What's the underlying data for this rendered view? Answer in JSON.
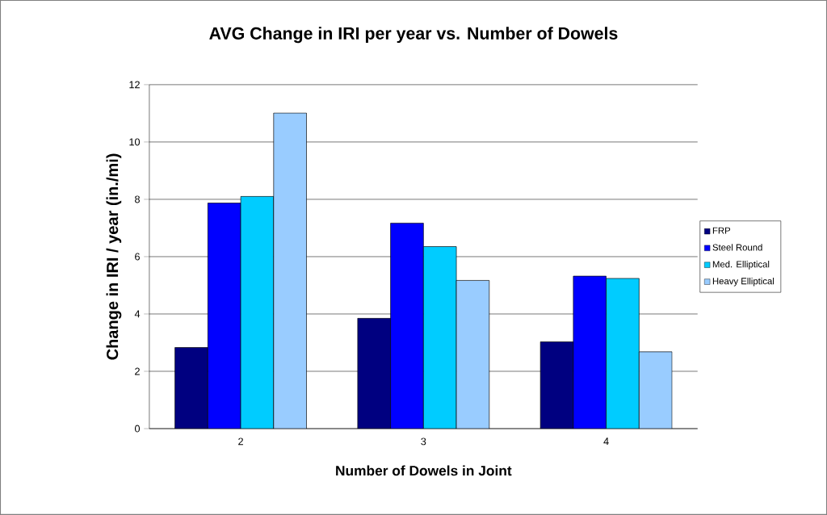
{
  "chart_data": {
    "type": "bar",
    "title": "AVG Change in IRI per year vs. Number of Dowels",
    "xlabel": "Number of Dowels in Joint",
    "ylabel": "Change in IRI / year (in./mi)",
    "categories": [
      "2",
      "3",
      "4"
    ],
    "series": [
      {
        "name": "FRP",
        "color": "#000080",
        "values": [
          2.83,
          3.85,
          3.03
        ]
      },
      {
        "name": "Steel Round",
        "color": "#0000ff",
        "values": [
          7.87,
          7.17,
          5.32
        ]
      },
      {
        "name": "Med. Elliptical",
        "color": "#00ccff",
        "values": [
          8.1,
          6.35,
          5.24
        ]
      },
      {
        "name": "Heavy Elliptical",
        "color": "#99ccff",
        "values": [
          11.01,
          5.17,
          2.68
        ]
      }
    ],
    "ylim": [
      0,
      12
    ],
    "yticks": [
      0,
      2,
      4,
      6,
      8,
      10,
      12
    ],
    "grid": "y",
    "legend": "right"
  }
}
